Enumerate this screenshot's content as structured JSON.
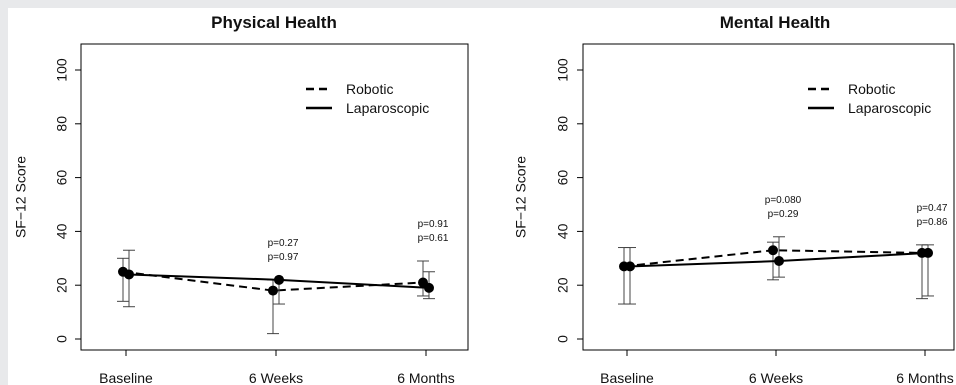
{
  "chart_data": [
    {
      "type": "line",
      "title": "Physical Health",
      "xlabel": "",
      "ylabel": "SF−12 Score",
      "categories": [
        "Baseline",
        "6 Weeks",
        "6 Months"
      ],
      "ylim": [
        0,
        100
      ],
      "yticks": [
        0,
        20,
        40,
        60,
        80,
        100
      ],
      "grid": false,
      "legend_position": "top-right",
      "series": [
        {
          "name": "Robotic",
          "line_style": "dashed",
          "color": "#000000",
          "values": [
            25,
            18,
            21
          ],
          "error_low": [
            14,
            2,
            16
          ],
          "error_high": [
            30,
            22,
            29
          ]
        },
        {
          "name": "Laparoscopic",
          "line_style": "solid",
          "color": "#000000",
          "values": [
            24,
            22,
            19
          ],
          "error_low": [
            12,
            13,
            15
          ],
          "error_high": [
            33,
            22,
            25
          ]
        }
      ],
      "annotations": [
        {
          "category": "6 Weeks",
          "lines": [
            "p=0.27",
            "p=0.97"
          ]
        },
        {
          "category": "6 Months",
          "lines": [
            "p=0.91",
            "p=0.61"
          ]
        }
      ]
    },
    {
      "type": "line",
      "title": "Mental Health",
      "xlabel": "",
      "ylabel": "SF−12 Score",
      "categories": [
        "Baseline",
        "6 Weeks",
        "6 Months"
      ],
      "ylim": [
        0,
        100
      ],
      "yticks": [
        0,
        20,
        40,
        60,
        80,
        100
      ],
      "grid": false,
      "legend_position": "top-right",
      "series": [
        {
          "name": "Robotic",
          "line_style": "dashed",
          "color": "#000000",
          "values": [
            27,
            33,
            32
          ],
          "error_low": [
            13,
            22,
            15
          ],
          "error_high": [
            34,
            36,
            35
          ]
        },
        {
          "name": "Laparoscopic",
          "line_style": "solid",
          "color": "#000000",
          "values": [
            27,
            29,
            32
          ],
          "error_low": [
            13,
            23,
            16
          ],
          "error_high": [
            34,
            38,
            35
          ]
        }
      ],
      "annotations": [
        {
          "category": "6 Weeks",
          "lines": [
            "p=0.080",
            "p=0.29"
          ]
        },
        {
          "category": "6 Months",
          "lines": [
            "p=0.47",
            "p=0.86"
          ]
        }
      ]
    }
  ]
}
